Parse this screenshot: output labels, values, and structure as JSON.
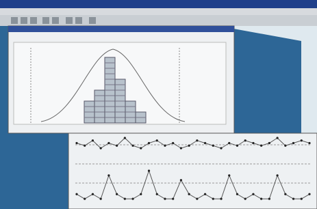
{
  "histogram": {
    "counts": [
      4,
      6,
      12,
      8,
      4,
      2
    ]
  },
  "xbar_chart": {
    "values": [
      6,
      5,
      7,
      4,
      6,
      5,
      8,
      5,
      4,
      6,
      7,
      5,
      6,
      4,
      5,
      7,
      6,
      5,
      4,
      6,
      5,
      7,
      6,
      5,
      6,
      8,
      5,
      6,
      7,
      6
    ]
  },
  "range_chart": {
    "values": [
      2,
      1,
      2,
      1,
      6,
      2,
      1,
      1,
      2,
      7,
      2,
      1,
      1,
      5,
      2,
      1,
      2,
      1,
      1,
      6,
      2,
      1,
      2,
      1,
      1,
      6,
      2,
      1,
      1,
      2
    ]
  }
}
